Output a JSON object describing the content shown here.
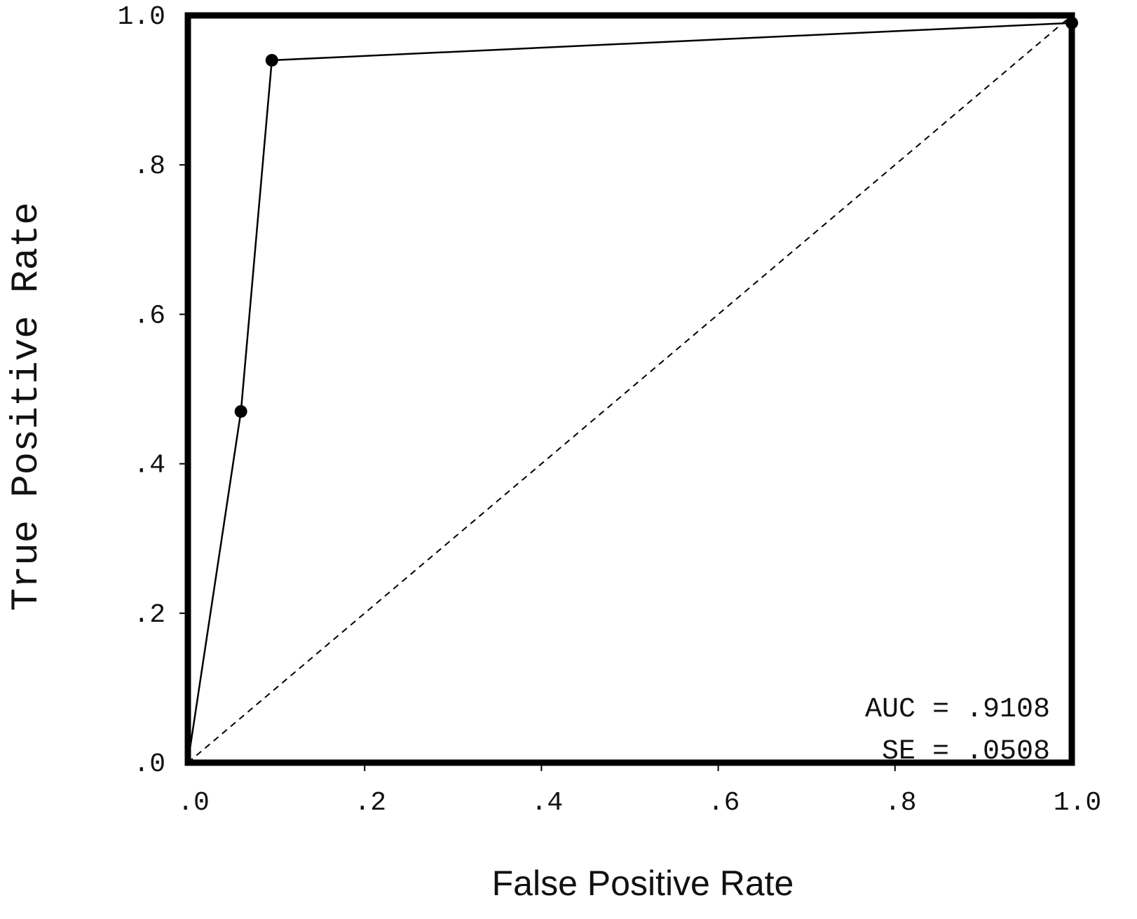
{
  "chart_data": {
    "type": "line",
    "xlabel": "False Positive Rate",
    "ylabel": "True Positive Rate",
    "xlim": [
      0,
      1
    ],
    "ylim": [
      0,
      1
    ],
    "x_ticks": [
      {
        "value": 0.0,
        "label": ".0"
      },
      {
        "value": 0.2,
        "label": ".2"
      },
      {
        "value": 0.4,
        "label": ".4"
      },
      {
        "value": 0.6,
        "label": ".6"
      },
      {
        "value": 0.8,
        "label": ".8"
      },
      {
        "value": 1.0,
        "label": "1.0"
      }
    ],
    "y_ticks": [
      {
        "value": 0.0,
        "label": ".0"
      },
      {
        "value": 0.2,
        "label": ".2"
      },
      {
        "value": 0.4,
        "label": ".4"
      },
      {
        "value": 0.6,
        "label": ".6"
      },
      {
        "value": 0.8,
        "label": ".8"
      },
      {
        "value": 1.0,
        "label": "1.0"
      }
    ],
    "grid": false,
    "series": [
      {
        "x": [
          0.0,
          0.06,
          0.095,
          1.0
        ],
        "y": [
          0.0,
          0.47,
          0.94,
          0.99
        ],
        "markers": [
          false,
          true,
          true,
          true
        ],
        "color": "#000000",
        "style": "solid"
      },
      {
        "x": [
          0.0,
          1.0
        ],
        "y": [
          0.0,
          1.0
        ],
        "color": "#000000",
        "style": "dashed"
      }
    ],
    "annotations": {
      "auc": "AUC = .9108",
      "se": "SE = .0508"
    }
  }
}
